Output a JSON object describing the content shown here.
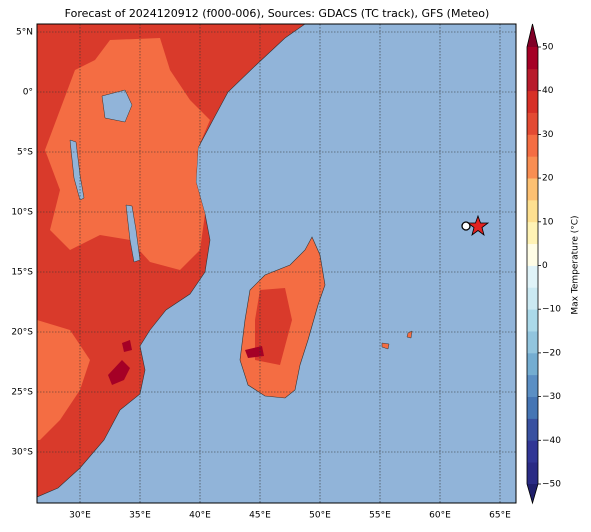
{
  "chart_data": {
    "type": "map",
    "title": "Forecast of 2024120912 (f000-006), Sources: GDACS (TC track), GFS (Meteo)",
    "lat_ticks": [
      {
        "value": 5,
        "label": "5°N"
      },
      {
        "value": 0,
        "label": "0°"
      },
      {
        "value": -5,
        "label": "5°S"
      },
      {
        "value": -10,
        "label": "10°S"
      },
      {
        "value": -15,
        "label": "15°S"
      },
      {
        "value": -20,
        "label": "20°S"
      },
      {
        "value": -25,
        "label": "25°S"
      },
      {
        "value": -30,
        "label": "30°S"
      }
    ],
    "lon_ticks": [
      {
        "value": 30,
        "label": "30°E"
      },
      {
        "value": 35,
        "label": "35°E"
      },
      {
        "value": 40,
        "label": "40°E"
      },
      {
        "value": 45,
        "label": "45°E"
      },
      {
        "value": 50,
        "label": "50°E"
      },
      {
        "value": 55,
        "label": "55°E"
      },
      {
        "value": 60,
        "label": "60°E"
      },
      {
        "value": 65,
        "label": "65°E"
      }
    ],
    "colorbar": {
      "label": "Max Temperature (°C)",
      "lim": [
        -50,
        50
      ],
      "ticks": [
        {
          "value": -50,
          "label": "−50"
        },
        {
          "value": -40,
          "label": "−40"
        },
        {
          "value": -30,
          "label": "−30"
        },
        {
          "value": -20,
          "label": "−20"
        },
        {
          "value": -10,
          "label": "−10"
        },
        0,
        10,
        20,
        30,
        40,
        50
      ],
      "colors": [
        "#2a2b85",
        "#313695",
        "#3951a0",
        "#4575b4",
        "#5b8fc4",
        "#74add1",
        "#92c5de",
        "#abd9e9",
        "#cbe9f2",
        "#e0f3f8",
        "#fffde6",
        "#fff3b5",
        "#fee090",
        "#fdc072",
        "#f98e52",
        "#f46d43",
        "#e34a33",
        "#d73027",
        "#b81b2c",
        "#a50026"
      ],
      "under_color": "#1f1f6b",
      "over_color": "#800026"
    }
  }
}
